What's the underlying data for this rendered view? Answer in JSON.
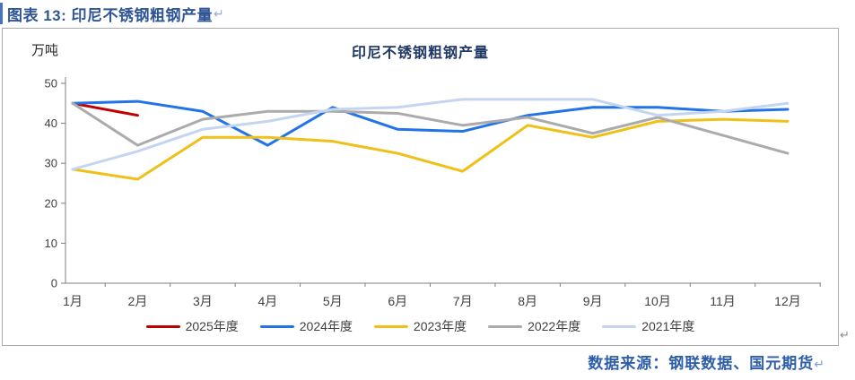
{
  "caption": {
    "label": "图表 13: 印尼不锈钢粗钢产量",
    "return_mark": "↵"
  },
  "footer": {
    "label": "数据来源：钢联数据、国元期货",
    "return_mark": "↵"
  },
  "frame_return_mark": "↵",
  "chart_data": {
    "type": "line",
    "title": "印尼不锈钢粗钢产量",
    "ylabel": "万吨",
    "xlabel": "",
    "ylim": [
      0,
      50
    ],
    "y_ticks": [
      0,
      10,
      20,
      30,
      40,
      50
    ],
    "grid": false,
    "legend_position": "bottom",
    "categories": [
      "1月",
      "2月",
      "3月",
      "4月",
      "5月",
      "6月",
      "7月",
      "8月",
      "9月",
      "10月",
      "11月",
      "12月"
    ],
    "series": [
      {
        "name": "2025年度",
        "color": "#C00000",
        "values": [
          45,
          42,
          null,
          null,
          null,
          null,
          null,
          null,
          null,
          null,
          null,
          null
        ]
      },
      {
        "name": "2024年度",
        "color": "#2272E8",
        "values": [
          45,
          45.5,
          43,
          34.5,
          44,
          38.5,
          38,
          42,
          44,
          44,
          43,
          43.5
        ]
      },
      {
        "name": "2023年度",
        "color": "#EFC018",
        "values": [
          28.5,
          26,
          36.5,
          36.5,
          35.5,
          32.5,
          28,
          39.5,
          36.5,
          40.5,
          41,
          40.5
        ]
      },
      {
        "name": "2022年度",
        "color": "#ABABAB",
        "values": [
          45,
          34.5,
          41,
          43,
          43,
          42.5,
          39.5,
          41.5,
          37.5,
          41.5,
          37,
          32.5
        ]
      },
      {
        "name": "2021年度",
        "color": "#C5D5F0",
        "values": [
          28.5,
          33,
          38.5,
          40.5,
          43.5,
          44,
          46,
          46,
          46,
          42,
          43,
          45
        ]
      }
    ],
    "axis_color": "#7F7F7F",
    "tick_label_color": "#404040"
  }
}
